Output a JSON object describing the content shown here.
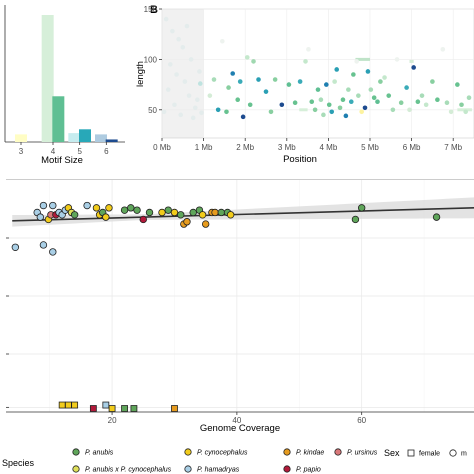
{
  "chart_data": [
    {
      "panel": "A",
      "type": "bar",
      "xlabel": "Motif Size",
      "categories": [
        "3",
        "4",
        "5",
        "6"
      ],
      "bars": [
        {
          "x": 3,
          "value": 0.06,
          "color": "#fffdc4"
        },
        {
          "x": 4,
          "value": 1.0,
          "color": "#d6efd9"
        },
        {
          "x": 4.4,
          "value": 0.36,
          "color": "#5fbf93"
        },
        {
          "x": 5,
          "value": 0.07,
          "color": "#c6ecef"
        },
        {
          "x": 5.4,
          "value": 0.1,
          "color": "#28a8b8"
        },
        {
          "x": 6,
          "value": 0.06,
          "color": "#aecbe0"
        },
        {
          "x": 6.4,
          "value": 0.02,
          "color": "#1d4b8f"
        }
      ],
      "xlim": [
        2.4,
        6.9
      ]
    },
    {
      "panel": "B",
      "type": "scatter",
      "label": "B",
      "xlabel": "Position",
      "ylabel": "length",
      "xlim": [
        0,
        7.5
      ],
      "ylim": [
        22,
        150
      ],
      "x_ticks": [
        0,
        1,
        2,
        3,
        4,
        5,
        6,
        7
      ],
      "x_tick_labels": [
        "0 Mb",
        "1 Mb",
        "2 Mb",
        "3 Mb",
        "4 Mb",
        "5 Mb",
        "6 Mb",
        "7 Mb"
      ],
      "y_ticks": [
        50,
        100,
        150
      ],
      "y_tick_labels": [
        "50",
        "100",
        "150"
      ],
      "shaded_region": [
        0,
        1
      ],
      "points": [
        {
          "x": 0.1,
          "y": 140,
          "c": "#e4ecec"
        },
        {
          "x": 0.25,
          "y": 128,
          "c": "#e4ecec"
        },
        {
          "x": 0.2,
          "y": 95,
          "c": "#e4ecec"
        },
        {
          "x": 0.35,
          "y": 85,
          "c": "#e4ecec"
        },
        {
          "x": 0.5,
          "y": 112,
          "c": "#e4ecec"
        },
        {
          "x": 0.55,
          "y": 78,
          "c": "#e4ecec"
        },
        {
          "x": 0.65,
          "y": 64,
          "c": "#e4ecec"
        },
        {
          "x": 0.8,
          "y": 52,
          "c": "#e4ecec"
        },
        {
          "x": 0.15,
          "y": 70,
          "c": "#e4ecec"
        },
        {
          "x": 0.45,
          "y": 45,
          "c": "#e4ecec"
        },
        {
          "x": 0.7,
          "y": 100,
          "c": "#e4ecec"
        },
        {
          "x": 0.9,
          "y": 88,
          "c": "#e4ecec"
        },
        {
          "x": 0.3,
          "y": 55,
          "c": "#e4ecec"
        },
        {
          "x": 0.6,
          "y": 133,
          "c": "#e4ecec"
        },
        {
          "x": 0.85,
          "y": 60,
          "c": "#e4ecec"
        },
        {
          "x": 0.05,
          "y": 48,
          "c": "#e4ecec"
        },
        {
          "x": 0.95,
          "y": 47,
          "c": "#e4ecec"
        },
        {
          "x": 0.4,
          "y": 120,
          "c": "#e4ecec"
        },
        {
          "x": 0.75,
          "y": 42,
          "c": "#e4ecec"
        },
        {
          "x": 0.92,
          "y": 76,
          "c": "#bfe3e0"
        },
        {
          "x": 1.15,
          "y": 64,
          "c": "#d4ecd6"
        },
        {
          "x": 1.25,
          "y": 80,
          "c": "#a8dcb8"
        },
        {
          "x": 1.35,
          "y": 50,
          "c": "#2a9fb4"
        },
        {
          "x": 1.45,
          "y": 118,
          "c": "#eef3ef"
        },
        {
          "x": 1.55,
          "y": 48,
          "c": "#67c290"
        },
        {
          "x": 1.6,
          "y": 72,
          "c": "#88cfa0"
        },
        {
          "x": 1.7,
          "y": 86,
          "c": "#1f7fb0"
        },
        {
          "x": 1.82,
          "y": 60,
          "c": "#67c290"
        },
        {
          "x": 1.88,
          "y": 78,
          "c": "#3aabb8"
        },
        {
          "x": 1.95,
          "y": 43,
          "c": "#1d4b8f"
        },
        {
          "x": 2.05,
          "y": 102,
          "c": "#c4e8cc"
        },
        {
          "x": 2.12,
          "y": 55,
          "c": "#67c290"
        },
        {
          "x": 2.2,
          "y": 98,
          "c": "#a0d8b0"
        },
        {
          "x": 2.32,
          "y": 80,
          "c": "#2a9fb4"
        },
        {
          "x": 2.5,
          "y": 68,
          "c": "#2a9fb4"
        },
        {
          "x": 2.62,
          "y": 48,
          "c": "#88cfa0"
        },
        {
          "x": 2.72,
          "y": 80,
          "c": "#88cfa0"
        },
        {
          "x": 2.88,
          "y": 55,
          "c": "#1d4b8f"
        },
        {
          "x": 3.05,
          "y": 75,
          "c": "#5fbf93"
        },
        {
          "x": 3.2,
          "y": 57,
          "c": "#67c290"
        },
        {
          "x": 3.32,
          "y": 78,
          "c": "#3aabb8"
        },
        {
          "x": 3.45,
          "y": 98,
          "c": "#c4e8cc"
        },
        {
          "x": 3.52,
          "y": 110,
          "c": "#eef3ef"
        },
        {
          "x": 3.6,
          "y": 58,
          "c": "#67c290"
        },
        {
          "x": 3.68,
          "y": 50,
          "c": "#88cfa0"
        },
        {
          "x": 3.75,
          "y": 70,
          "c": "#5fbf93"
        },
        {
          "x": 3.82,
          "y": 60,
          "c": "#a8dcb8"
        },
        {
          "x": 3.88,
          "y": 45,
          "c": "#a8dcb8"
        },
        {
          "x": 3.95,
          "y": 75,
          "c": "#1f7fb0"
        },
        {
          "x": 4.02,
          "y": 55,
          "c": "#67c290"
        },
        {
          "x": 4.08,
          "y": 48,
          "c": "#2a9fb4"
        },
        {
          "x": 4.15,
          "y": 78,
          "c": "#c4e8cc"
        },
        {
          "x": 4.2,
          "y": 90,
          "c": "#2a9fb4"
        },
        {
          "x": 4.28,
          "y": 52,
          "c": "#88cfa0"
        },
        {
          "x": 4.35,
          "y": 60,
          "c": "#67c290"
        },
        {
          "x": 4.42,
          "y": 44,
          "c": "#1f7fb0"
        },
        {
          "x": 4.48,
          "y": 70,
          "c": "#a8dcb8"
        },
        {
          "x": 4.55,
          "y": 58,
          "c": "#3aabb8"
        },
        {
          "x": 4.6,
          "y": 85,
          "c": "#67c290"
        },
        {
          "x": 4.68,
          "y": 98,
          "c": "#eef3ef"
        },
        {
          "x": 4.72,
          "y": 64,
          "c": "#a8dcb8"
        },
        {
          "x": 4.8,
          "y": 48,
          "c": "#fdf3a0"
        },
        {
          "x": 4.88,
          "y": 52,
          "c": "#1d4b8f"
        },
        {
          "x": 4.95,
          "y": 88,
          "c": "#2a9fb4"
        },
        {
          "x": 5.02,
          "y": 70,
          "c": "#a8dcb8"
        },
        {
          "x": 5.1,
          "y": 62,
          "c": "#67c290"
        },
        {
          "x": 5.18,
          "y": 58,
          "c": "#5fbf93"
        },
        {
          "x": 5.25,
          "y": 78,
          "c": "#88cfa0"
        },
        {
          "x": 5.35,
          "y": 82,
          "c": "#c4e8cc"
        },
        {
          "x": 5.45,
          "y": 64,
          "c": "#67c290"
        },
        {
          "x": 5.55,
          "y": 50,
          "c": "#a8dcb8"
        },
        {
          "x": 5.65,
          "y": 100,
          "c": "#eef3ef"
        },
        {
          "x": 5.75,
          "y": 57,
          "c": "#88cfa0"
        },
        {
          "x": 5.88,
          "y": 72,
          "c": "#3aabb8"
        },
        {
          "x": 5.95,
          "y": 50,
          "c": "#d4ecd6"
        },
        {
          "x": 6.05,
          "y": 92,
          "c": "#1d4b8f"
        },
        {
          "x": 6.15,
          "y": 58,
          "c": "#67c290"
        },
        {
          "x": 6.25,
          "y": 64,
          "c": "#a8dcb8"
        },
        {
          "x": 6.35,
          "y": 55,
          "c": "#c4e8cc"
        },
        {
          "x": 6.5,
          "y": 78,
          "c": "#88cfa0"
        },
        {
          "x": 6.62,
          "y": 60,
          "c": "#67c290"
        },
        {
          "x": 6.75,
          "y": 110,
          "c": "#eef3ef"
        },
        {
          "x": 6.85,
          "y": 57,
          "c": "#a8dcb8"
        },
        {
          "x": 6.95,
          "y": 48,
          "c": "#d4ecd6"
        },
        {
          "x": 7.1,
          "y": 75,
          "c": "#67c290"
        },
        {
          "x": 7.2,
          "y": 55,
          "c": "#88cfa0"
        },
        {
          "x": 7.3,
          "y": 48,
          "c": "#c4e8cc"
        },
        {
          "x": 7.38,
          "y": 62,
          "c": "#a8dcb8"
        }
      ],
      "hbars": [
        {
          "x": 5.95,
          "x2": 6.05,
          "y": 98,
          "c": "#d4ecd6"
        },
        {
          "x": 3.3,
          "x2": 3.5,
          "y": 50,
          "c": "#d6efd9"
        },
        {
          "x": 4.65,
          "x2": 5.0,
          "y": 100,
          "c": "#bfe3c8"
        },
        {
          "x": 7.1,
          "x2": 7.45,
          "y": 50,
          "c": "#d6efd9"
        }
      ]
    },
    {
      "panel": "C",
      "type": "scatter",
      "xlabel": "Genome Coverage",
      "xlim": [
        3,
        78
      ],
      "ylim": [
        0,
        100
      ],
      "x_ticks": [
        20,
        40,
        60
      ],
      "x_tick_labels": [
        "20",
        "40",
        "60"
      ],
      "y_ticks": [
        2,
        25,
        50,
        75
      ],
      "regression": {
        "x1": 4,
        "y1": 82.4,
        "x2": 78,
        "y2": 88,
        "band": [
          1.2,
          4.5
        ]
      },
      "points": [
        {
          "x": 4.5,
          "y": 71,
          "species": "P. hamadryas",
          "shape": "circle"
        },
        {
          "x": 8,
          "y": 86,
          "species": "P. hamadryas",
          "shape": "circle"
        },
        {
          "x": 8.5,
          "y": 84,
          "species": "P. hamadryas",
          "shape": "circle"
        },
        {
          "x": 9,
          "y": 89,
          "species": "P. hamadryas",
          "shape": "circle"
        },
        {
          "x": 9.8,
          "y": 83,
          "species": "P. cynocephalus",
          "shape": "circle"
        },
        {
          "x": 10.2,
          "y": 85,
          "species": "P. ursinus",
          "shape": "circle"
        },
        {
          "x": 10.5,
          "y": 89,
          "species": "P. hamadryas",
          "shape": "circle"
        },
        {
          "x": 11,
          "y": 85,
          "species": "P. papio",
          "shape": "circle"
        },
        {
          "x": 11.5,
          "y": 86,
          "species": "P. hamadryas",
          "shape": "circle"
        },
        {
          "x": 12,
          "y": 85,
          "species": "P. hamadryas",
          "shape": "circle"
        },
        {
          "x": 12.5,
          "y": 87,
          "species": "P. hamadryas",
          "shape": "circle"
        },
        {
          "x": 13,
          "y": 88,
          "species": "P. cynocephalus",
          "shape": "circle"
        },
        {
          "x": 13.5,
          "y": 86,
          "species": "P. anubis x P. cynocephalus",
          "shape": "circle"
        },
        {
          "x": 14,
          "y": 85,
          "species": "P. anubis",
          "shape": "circle"
        },
        {
          "x": 9,
          "y": 72,
          "species": "P. hamadryas",
          "shape": "circle"
        },
        {
          "x": 10.5,
          "y": 69,
          "species": "P. hamadryas",
          "shape": "circle"
        },
        {
          "x": 16,
          "y": 89,
          "species": "P. hamadryas",
          "shape": "circle"
        },
        {
          "x": 17.5,
          "y": 88,
          "species": "P. cynocephalus",
          "shape": "circle"
        },
        {
          "x": 18,
          "y": 85,
          "species": "P. cynocephalus",
          "shape": "circle"
        },
        {
          "x": 18.5,
          "y": 86,
          "species": "P. anubis",
          "shape": "circle"
        },
        {
          "x": 19.5,
          "y": 88,
          "species": "P. cynocephalus",
          "shape": "circle"
        },
        {
          "x": 19,
          "y": 84,
          "species": "P. cynocephalus",
          "shape": "circle"
        },
        {
          "x": 22,
          "y": 87,
          "species": "P. anubis",
          "shape": "circle"
        },
        {
          "x": 23,
          "y": 88,
          "species": "P. anubis",
          "shape": "circle"
        },
        {
          "x": 24,
          "y": 87,
          "species": "P. anubis",
          "shape": "circle"
        },
        {
          "x": 26,
          "y": 86,
          "species": "P. anubis",
          "shape": "circle"
        },
        {
          "x": 25,
          "y": 83,
          "species": "P. papio",
          "shape": "circle"
        },
        {
          "x": 28,
          "y": 86,
          "species": "P. cynocephalus",
          "shape": "circle"
        },
        {
          "x": 29,
          "y": 87,
          "species": "P. anubis",
          "shape": "circle"
        },
        {
          "x": 30,
          "y": 86,
          "species": "P. cynocephalus",
          "shape": "circle"
        },
        {
          "x": 31,
          "y": 85,
          "species": "P. anubis",
          "shape": "circle"
        },
        {
          "x": 31.5,
          "y": 81,
          "species": "P. kindae",
          "shape": "circle"
        },
        {
          "x": 32,
          "y": 82,
          "species": "P. kindae",
          "shape": "circle"
        },
        {
          "x": 33,
          "y": 86,
          "species": "P. anubis",
          "shape": "circle"
        },
        {
          "x": 34,
          "y": 87,
          "species": "P. anubis",
          "shape": "circle"
        },
        {
          "x": 34.5,
          "y": 85,
          "species": "P. cynocephalus",
          "shape": "circle"
        },
        {
          "x": 35,
          "y": 81,
          "species": "P. kindae",
          "shape": "circle"
        },
        {
          "x": 36,
          "y": 86,
          "species": "P. kindae",
          "shape": "circle"
        },
        {
          "x": 36.5,
          "y": 86,
          "species": "P. kindae",
          "shape": "circle"
        },
        {
          "x": 37.5,
          "y": 86,
          "species": "P. anubis",
          "shape": "circle"
        },
        {
          "x": 38.5,
          "y": 86,
          "species": "P. anubis",
          "shape": "circle"
        },
        {
          "x": 39,
          "y": 85,
          "species": "P. cynocephalus",
          "shape": "circle"
        },
        {
          "x": 59,
          "y": 83,
          "species": "P. anubis",
          "shape": "circle"
        },
        {
          "x": 60,
          "y": 88,
          "species": "P. anubis",
          "shape": "circle"
        },
        {
          "x": 72,
          "y": 84,
          "species": "P. anubis",
          "shape": "circle"
        },
        {
          "x": 12,
          "y": 3,
          "species": "P. cynocephalus",
          "shape": "square"
        },
        {
          "x": 13,
          "y": 3,
          "species": "P. cynocephalus",
          "shape": "square"
        },
        {
          "x": 14,
          "y": 3,
          "species": "P. cynocephalus",
          "shape": "square"
        },
        {
          "x": 17,
          "y": 1.5,
          "species": "P. papio",
          "shape": "square"
        },
        {
          "x": 19,
          "y": 3,
          "species": "P. hamadryas",
          "shape": "square"
        },
        {
          "x": 20,
          "y": 1.5,
          "species": "P. cynocephalus",
          "shape": "square"
        },
        {
          "x": 22,
          "y": 1.5,
          "species": "P. anubis",
          "shape": "square"
        },
        {
          "x": 23.5,
          "y": 1.5,
          "species": "P. anubis",
          "shape": "square"
        },
        {
          "x": 30,
          "y": 1.5,
          "species": "P. kindae",
          "shape": "square"
        }
      ]
    }
  ],
  "panel_labels": {
    "b": "B"
  },
  "legend": {
    "species_title": "Species",
    "sex_title": "Sex",
    "species": [
      {
        "name": "P. anubis",
        "color": "#5fa55a"
      },
      {
        "name": "P. cynocephalus",
        "color": "#f2cc1b"
      },
      {
        "name": "P. kindae",
        "color": "#e69b1e"
      },
      {
        "name": "P. ursinus",
        "color": "#d9787a"
      },
      {
        "name": "P. anubis x P. cynocephalus",
        "color": "#dfe05a"
      },
      {
        "name": "P. hamadryas",
        "color": "#a9cfe6"
      },
      {
        "name": "P. papio",
        "color": "#b11a3a"
      }
    ],
    "sex": [
      {
        "name": "female",
        "shape": "square"
      },
      {
        "name": "m",
        "shape": "circle"
      }
    ]
  },
  "species_colors": {
    "P. anubis": "#5fa55a",
    "P. cynocephalus": "#f2cc1b",
    "P. kindae": "#e69b1e",
    "P. ursinus": "#d9787a",
    "P. anubis x P. cynocephalus": "#dfe05a",
    "P. hamadryas": "#a9cfe6",
    "P. papio": "#b11a3a"
  }
}
